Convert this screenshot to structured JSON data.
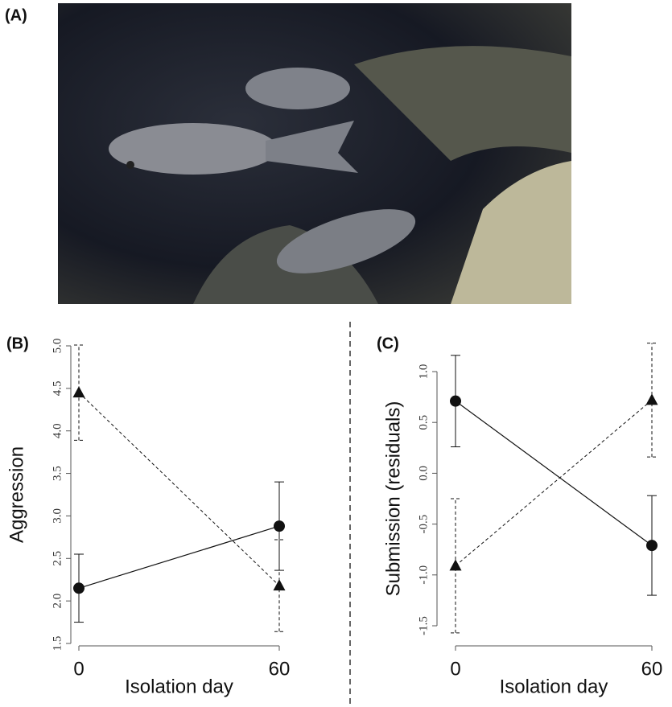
{
  "photo_label": "(A)",
  "chart_data": [
    {
      "type": "line",
      "panel_label": "(B)",
      "xlabel": "Isolation day",
      "ylabel": "Aggression",
      "x": [
        0,
        60
      ],
      "xlim": [
        0,
        60
      ],
      "xticks": [
        0,
        60
      ],
      "ylim": [
        1.5,
        5.0
      ],
      "yticks": [
        {
          "value": 1.5,
          "label": "1.5"
        },
        {
          "value": 2,
          "label": "2.0"
        },
        {
          "value": 2.5,
          "label": "2.5"
        },
        {
          "value": 3,
          "label": "3.0"
        },
        {
          "value": 3.5,
          "label": "3.5"
        },
        {
          "value": 4,
          "label": "4.0"
        },
        {
          "value": 4.5,
          "label": "4.5"
        },
        {
          "value": 5,
          "label": "5.0"
        }
      ],
      "series": [
        {
          "color": "#111111",
          "style": "solid",
          "marker": "circle",
          "values": [
            2.15,
            2.88
          ],
          "errors": [
            0.4,
            0.52
          ]
        },
        {
          "color": "#111111",
          "style": "dashed",
          "marker": "triangle",
          "values": [
            4.45,
            2.18
          ],
          "errors": [
            0.56,
            0.54
          ]
        }
      ]
    },
    {
      "type": "line",
      "panel_label": "(C)",
      "xlabel": "Isolation day",
      "ylabel": "Submission (residuals)",
      "x": [
        0,
        60
      ],
      "xlim": [
        0,
        60
      ],
      "xticks": [
        0,
        60
      ],
      "ylim": [
        -1.5,
        1.0
      ],
      "yticks": [
        {
          "value": -1.5,
          "label": "-1.5"
        },
        {
          "value": -1,
          "label": "-1.0"
        },
        {
          "value": -0.5,
          "label": "-0.5"
        },
        {
          "value": 0,
          "label": "0.0"
        },
        {
          "value": 0.5,
          "label": "0.5"
        },
        {
          "value": 1,
          "label": "1.0"
        }
      ],
      "series": [
        {
          "color": "#111111",
          "style": "solid",
          "marker": "circle",
          "values": [
            0.71,
            -0.71
          ],
          "errors": [
            0.45,
            0.49
          ]
        },
        {
          "color": "#111111",
          "style": "dashed",
          "marker": "triangle",
          "values": [
            -0.91,
            0.72
          ],
          "errors": [
            0.66,
            0.56
          ]
        }
      ]
    }
  ]
}
